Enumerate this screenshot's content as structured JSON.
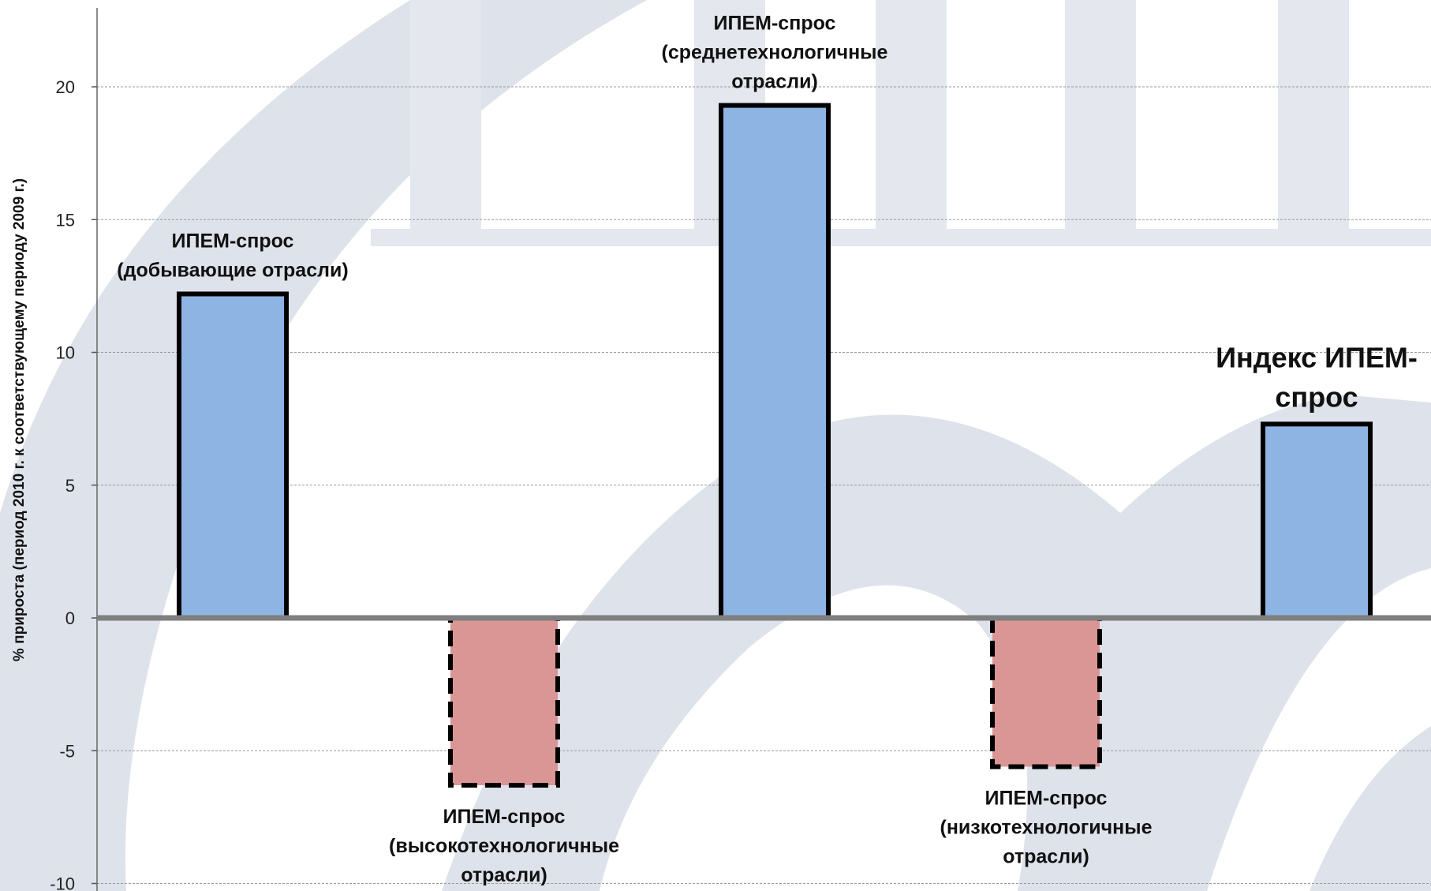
{
  "chart_data": {
    "type": "bar",
    "categories": [
      "ИПЕМ-спрос (добывающие отрасли)",
      "ИПЕМ-спрос (высокотехнологичные отрасли)",
      "ИПЕМ-спрос (среднетехнологичные отрасли)",
      "ИПЕМ-спрос (низкотехнологичные отрасли)",
      "Индекс ИПЕМ-спрос"
    ],
    "values": [
      12.2,
      -6.3,
      19.3,
      -5.6,
      7.3
    ],
    "labels": [
      [
        "ИПЕМ-спрос",
        "(добывающие отрасли)"
      ],
      [
        "ИПЕМ-спрос",
        "(высокотехнологичные",
        "отрасли)"
      ],
      [
        "ИПЕМ-спрос",
        "(среднетехнологичные",
        "отрасли)"
      ],
      [
        "ИПЕМ-спрос",
        "(низкотехнологичные",
        "отрасли)"
      ],
      [
        "Индекс ИПЕМ-",
        "спрос"
      ]
    ],
    "ylabel": "% прироста (период 2010 г. к соответствующему периоду 2009 г.)",
    "ylim": [
      -10,
      23
    ],
    "yticks": [
      -10,
      -5,
      0,
      5,
      10,
      15,
      20
    ],
    "grid": true,
    "colors": {
      "positive": "#8EB4E3",
      "negative": "#D99694",
      "outline": "#000000",
      "zero_line": "#7F7F7F",
      "grid": "#9A9A9A",
      "watermark": "#DDE1E9"
    }
  }
}
